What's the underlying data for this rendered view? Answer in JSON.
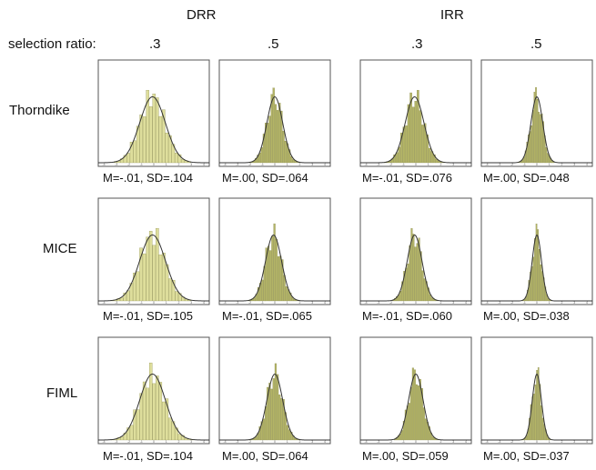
{
  "figure": {
    "selection_ratio_label": "selection ratio:",
    "groups": [
      "DRR",
      "IRR"
    ],
    "ratios": [
      ".3",
      ".5",
      ".3",
      ".5"
    ],
    "rows": [
      "Thorndike",
      "MICE",
      "FIML"
    ]
  },
  "chart_data": {
    "type": "histogram-grid",
    "group_headers": [
      "DRR",
      "IRR"
    ],
    "column_ratios": [
      ".3",
      ".5",
      ".3",
      ".5"
    ],
    "row_labels": [
      "Thorndike",
      "MICE",
      "FIML"
    ],
    "x_ticks": [
      "-4",
      "-3",
      "-2",
      "-1",
      "0",
      "1",
      "2",
      "3",
      "4"
    ],
    "panels": [
      [
        {
          "mean": -0.01,
          "sd": 0.104,
          "label": "M=-.01, SD=.104"
        },
        {
          "mean": 0.0,
          "sd": 0.064,
          "label": "M=.00, SD=.064"
        },
        {
          "mean": -0.01,
          "sd": 0.076,
          "label": "M=-.01, SD=.076"
        },
        {
          "mean": 0.0,
          "sd": 0.048,
          "label": "M=.00, SD=.048"
        }
      ],
      [
        {
          "mean": -0.01,
          "sd": 0.105,
          "label": "M=-.01, SD=.105"
        },
        {
          "mean": -0.01,
          "sd": 0.065,
          "label": "M=-.01, SD=.065"
        },
        {
          "mean": -0.01,
          "sd": 0.06,
          "label": "M=-.01, SD=.060"
        },
        {
          "mean": 0.0,
          "sd": 0.038,
          "label": "M=.00, SD=.038"
        }
      ],
      [
        {
          "mean": -0.01,
          "sd": 0.104,
          "label": "M=-.01, SD=.104"
        },
        {
          "mean": 0.0,
          "sd": 0.064,
          "label": "M=.00, SD=.064"
        },
        {
          "mean": 0.0,
          "sd": 0.059,
          "label": "M=.00, SD=.059"
        },
        {
          "mean": 0.0,
          "sd": 0.037,
          "label": "M=.00, SD=.037"
        }
      ]
    ],
    "colors": {
      "bar_light": "#dede9c",
      "bar_dark": "#b3b466",
      "curve": "#333333",
      "frame": "#555555"
    }
  }
}
